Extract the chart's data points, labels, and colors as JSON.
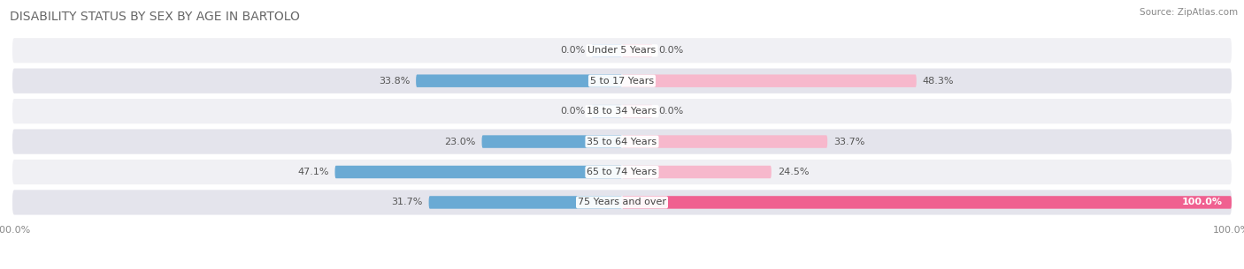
{
  "title": "DISABILITY STATUS BY SEX BY AGE IN BARTOLO",
  "source": "Source: ZipAtlas.com",
  "categories": [
    "Under 5 Years",
    "5 to 17 Years",
    "18 to 34 Years",
    "35 to 64 Years",
    "65 to 74 Years",
    "75 Years and over"
  ],
  "male_values": [
    0.0,
    33.8,
    0.0,
    23.0,
    47.1,
    31.7
  ],
  "female_values": [
    0.0,
    48.3,
    0.0,
    33.7,
    24.5,
    100.0
  ],
  "male_color_light": "#a8c8e8",
  "male_color_dark": "#6aaad4",
  "female_color_light": "#f7b8cc",
  "female_color_dark": "#f06090",
  "row_bg_color_odd": "#f0f0f4",
  "row_bg_color_even": "#e4e4ec",
  "max_value": 100.0,
  "min_bar_display": 5.0,
  "title_fontsize": 10,
  "label_fontsize": 8,
  "category_fontsize": 8,
  "axis_label_fontsize": 8,
  "legend_fontsize": 9
}
